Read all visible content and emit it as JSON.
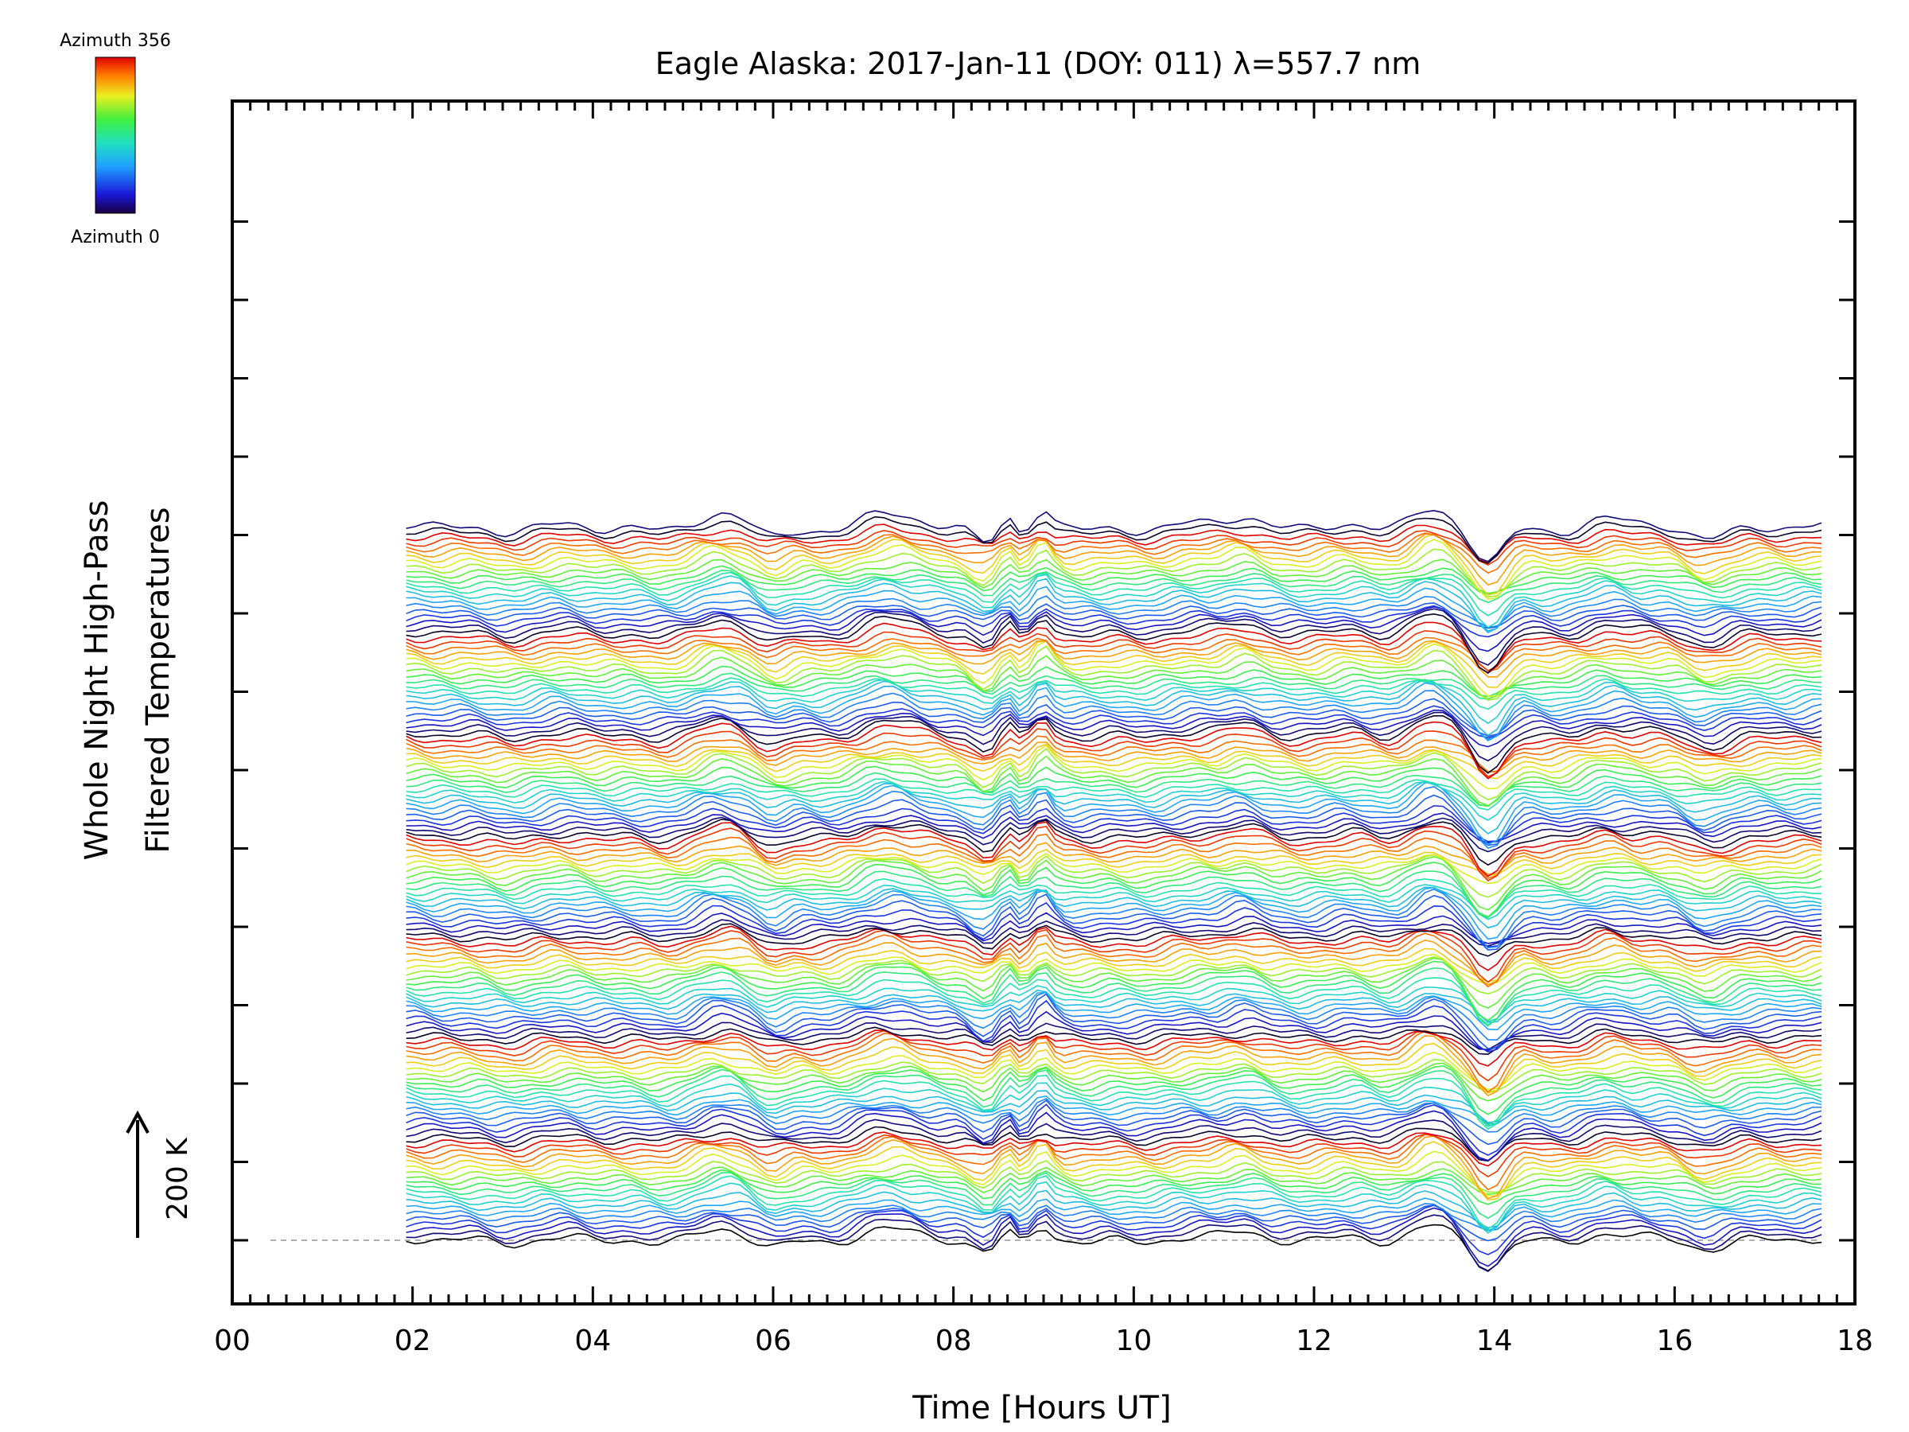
{
  "chart_data": {
    "type": "line",
    "title": "Eagle Alaska: 2017-Jan-11 (DOY: 011) λ=557.7 nm",
    "xlabel": "Time [Hours UT]",
    "ylabel_lines": [
      "Whole Night High-Pass",
      "Filtered Temperatures"
    ],
    "xlim": [
      0,
      18
    ],
    "x_ticks": [
      "00",
      "02",
      "04",
      "06",
      "08",
      "10",
      "12",
      "14",
      "16",
      "18"
    ],
    "x_tick_values": [
      0,
      2,
      4,
      6,
      8,
      10,
      12,
      14,
      16,
      18
    ],
    "colorbar": {
      "top_label": "Azimuth 356",
      "bottom_label": "Azimuth 0",
      "min": 0,
      "max": 356,
      "colormap": "rainbow"
    },
    "scale_bar_label": "200 K",
    "data_start_hour": 1.93,
    "data_end_hour": 17.65,
    "num_traces": 142,
    "num_groups": 7,
    "traces_per_group": 20,
    "grid": false,
    "baseline_dashed": true,
    "features": {
      "sharp_dip_hour": 13.9,
      "peak_hour": 13.3,
      "oscillation_hours": [
        8.4,
        8.6,
        8.8,
        9.0
      ],
      "bump_hours": [
        5.4,
        7.4,
        11.2,
        15.3
      ]
    }
  },
  "colors": {
    "axis": "#000000",
    "baseline": "#b0b0b0"
  }
}
